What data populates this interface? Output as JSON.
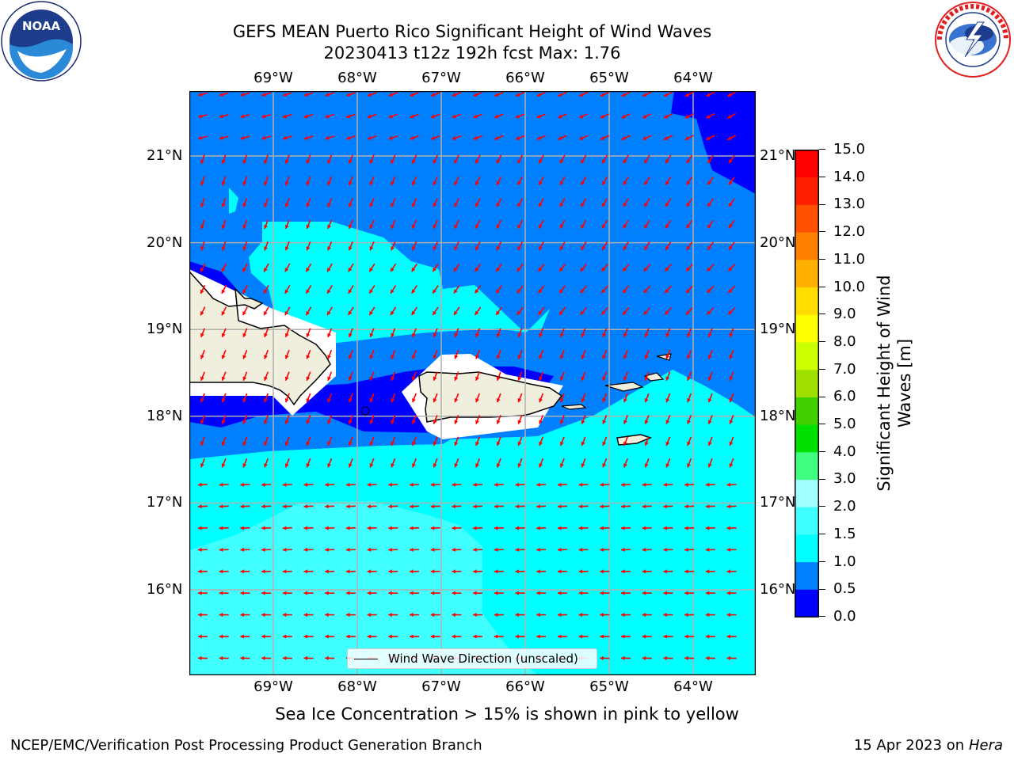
{
  "title": {
    "line1": "GEFS MEAN Puerto Rico Significant Height of Wind Waves",
    "line2": "20230413 t12z 192h fcst   Max: 1.76"
  },
  "logos": {
    "left": "noaa-logo",
    "right": "national-weather-service-logo",
    "left_text": "NOAA",
    "left_ring": "NATIONAL OCEANIC AND ATMOSPHERIC ADMINISTRATION · U.S. DEPARTMENT OF COMMERCE",
    "right_ring": "NATIONAL WEATHER SERVICE"
  },
  "map": {
    "lon_labels": [
      "69°W",
      "68°W",
      "67°W",
      "66°W",
      "65°W",
      "64°W"
    ],
    "lat_labels": [
      "21°N",
      "20°N",
      "19°N",
      "18°N",
      "17°N",
      "16°N"
    ],
    "lon_ticks": [
      -69,
      -68,
      -67,
      -66,
      -65,
      -64
    ],
    "lat_ticks": [
      21,
      20,
      19,
      18,
      17,
      16
    ],
    "grid": true,
    "legend": {
      "label": "Wind Wave Direction (unscaled)",
      "placement": "bottom-center"
    }
  },
  "colorbar": {
    "label": "Significant Height of Wind Waves [m]",
    "label_line1": "Significant Height of Wind",
    "label_line2": "Waves [m]",
    "ticks": [
      "15.0",
      "14.0",
      "13.0",
      "12.0",
      "11.0",
      "10.0",
      "9.0",
      "8.0",
      "7.0",
      "6.0",
      "5.0",
      "4.0",
      "3.0",
      "2.0",
      "1.5",
      "1.0",
      "0.5",
      "0.0"
    ],
    "levels": [
      0.0,
      0.5,
      1.0,
      1.5,
      2.0,
      3.0,
      4.0,
      5.0,
      6.0,
      7.0,
      8.0,
      9.0,
      10.0,
      11.0,
      12.0,
      13.0,
      14.0,
      15.0
    ],
    "colors": [
      "#0000ff",
      "#0080ff",
      "#00ffff",
      "#40ffff",
      "#a0ffff",
      "#40ff80",
      "#00e000",
      "#40d000",
      "#a0e000",
      "#ccff00",
      "#ffff00",
      "#ffdd00",
      "#ffb000",
      "#ff8000",
      "#ff5000",
      "#ff2000",
      "#ff0000"
    ]
  },
  "colors": {
    "band_0_0_5": "#0000ff",
    "band_0_5_1_0": "#0080ff",
    "band_1_0_1_5": "#00ffff",
    "band_1_5_2_0": "#40ffff",
    "land": "#f0eedc",
    "arrow": "#ff0000",
    "grid": "#b0b0b0"
  },
  "note": "Sea Ice Concentration > 15% is shown in pink to yellow",
  "footer": {
    "left": "NCEP/EMC/Verification Post Processing Product Generation Branch",
    "right_date": "15 Apr 2023 on ",
    "right_host": "Hera"
  }
}
